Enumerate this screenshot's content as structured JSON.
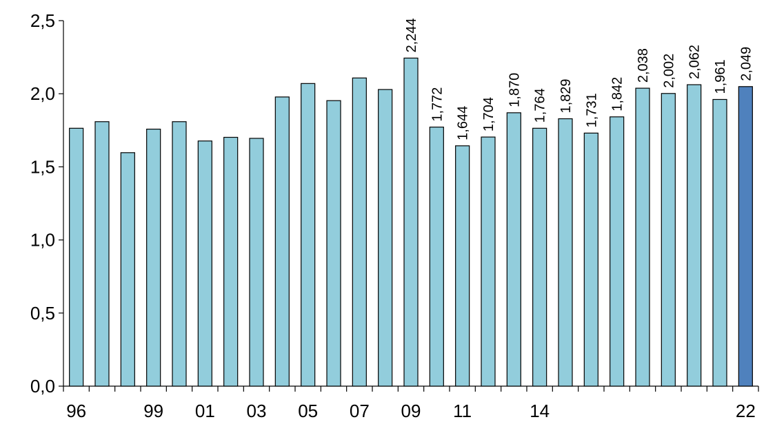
{
  "chart_data": {
    "type": "bar",
    "title": "",
    "xlabel": "",
    "ylabel": "",
    "ylim": [
      0,
      2.5
    ],
    "yticks": [
      "0,0",
      "0,5",
      "1,0",
      "1,5",
      "2,0",
      "2,5"
    ],
    "grid": false,
    "colors": {
      "default": "#92CDDC",
      "highlight": "#4F81BD"
    },
    "categories": [
      "96",
      "97",
      "98",
      "99",
      "00",
      "01",
      "02",
      "03",
      "04",
      "05",
      "06",
      "07",
      "08",
      "09",
      "10",
      "11",
      "12",
      "13",
      "14",
      "15",
      "16",
      "17",
      "18",
      "19",
      "20",
      "21",
      "22"
    ],
    "x_tick_labels": [
      "96",
      "",
      "",
      "99",
      "",
      "01",
      "",
      "03",
      "",
      "05",
      "",
      "07",
      "",
      "09",
      "",
      "11",
      "",
      "",
      "14",
      "",
      "",
      "",
      "",
      "",
      "",
      "",
      "22"
    ],
    "values": [
      1.764,
      1.809,
      1.597,
      1.758,
      1.809,
      1.677,
      1.702,
      1.695,
      1.978,
      2.07,
      1.953,
      2.108,
      2.029,
      2.244,
      1.772,
      1.644,
      1.704,
      1.87,
      1.764,
      1.829,
      1.731,
      1.842,
      2.038,
      2.002,
      2.062,
      1.961,
      2.049
    ],
    "data_labels": [
      "",
      "",
      "",
      "",
      "",
      "",
      "",
      "",
      "",
      "",
      "",
      "",
      "",
      "2,244",
      "1,772",
      "1,644",
      "1,704",
      "1,870",
      "1,764",
      "1,829",
      "1,731",
      "1,842",
      "2,038",
      "2,002",
      "2,062",
      "1,961",
      "2,049"
    ],
    "highlight_index": 26
  }
}
